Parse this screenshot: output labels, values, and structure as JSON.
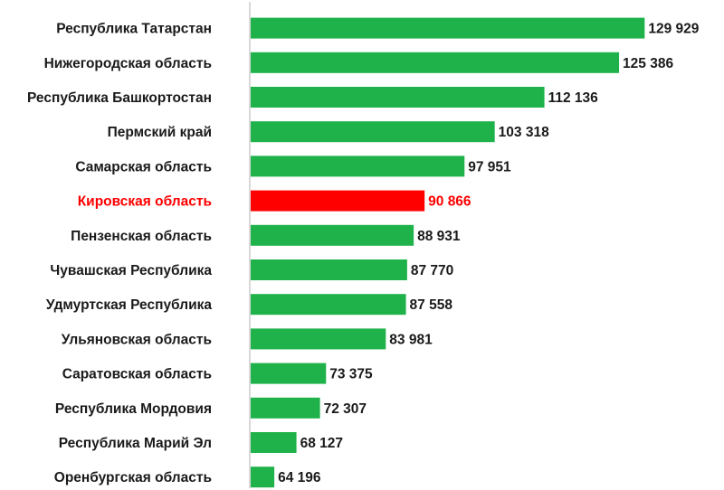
{
  "chart_data": {
    "type": "bar",
    "orientation": "horizontal",
    "title": "",
    "xlabel": "",
    "ylabel": "",
    "grid": false,
    "legend": "none",
    "xlim": [
      60000,
      131000
    ],
    "categories": [
      "Республика Татарстан",
      "Нижегородская область",
      "Республика Башкортостан",
      "Пермский край",
      "Самарская область",
      "Кировская область",
      "Пензенская область",
      "Чувашская Республика",
      "Удмуртская Республика",
      "Ульяновская область",
      "Саратовская область",
      "Республика Мордовия",
      "Республика Марий Эл",
      "Оренбургская область"
    ],
    "values": [
      129929,
      125386,
      112136,
      103318,
      97951,
      90866,
      88931,
      87770,
      87558,
      83981,
      73375,
      72307,
      68127,
      64196
    ],
    "value_labels": [
      "129 929",
      "125 386",
      "112 136",
      "103 318",
      "97 951",
      "90 866",
      "88 931",
      "87 770",
      "87 558",
      "83 981",
      "73 375",
      "72 307",
      "68 127",
      "64 196"
    ],
    "highlight_index": 5,
    "colors": {
      "bar": "#1fb24a",
      "highlight": "#ff0000",
      "text": "#1a1a1a",
      "axis": "#b0b0b0"
    }
  }
}
